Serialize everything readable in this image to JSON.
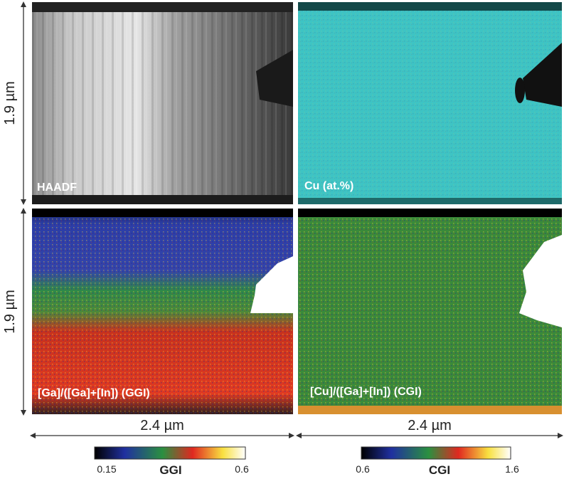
{
  "panels": [
    {
      "label": "HAADF"
    },
    {
      "label": "Cu (at.%)"
    },
    {
      "label": "[Ga]/([Ga]+[In]) (GGI)"
    },
    {
      "label": "[Cu]/([Ga]+[In]) (CGI)"
    }
  ],
  "scale_bars": {
    "vertical": [
      "1.9 µm",
      "1.9 µm"
    ],
    "horizontal": [
      "2.4 µm",
      "2.4 µm"
    ]
  },
  "colorbars": [
    {
      "min": 0.15,
      "title": "GGI",
      "max": 0.6
    },
    {
      "min": 0.6,
      "title": "CGI",
      "max": 1.6
    }
  ]
}
